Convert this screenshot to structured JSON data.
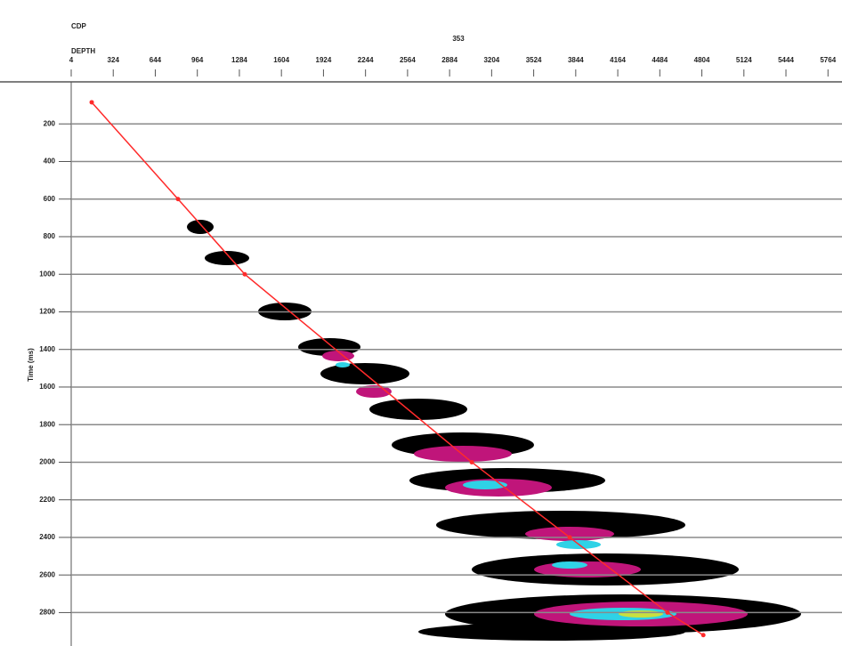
{
  "chart_data": {
    "type": "line",
    "label_top": "CDP",
    "cdp": "353",
    "xlabel": "DEPTH",
    "ylabel": "Time (ms)",
    "xlim": [
      4,
      5830
    ],
    "ylim": [
      0,
      2940
    ],
    "xticks": [
      4,
      324,
      644,
      964,
      1284,
      1604,
      1924,
      2244,
      2564,
      2884,
      3204,
      3524,
      3844,
      4164,
      4484,
      4804,
      5124,
      5444,
      5764
    ],
    "yticks": [
      200,
      400,
      600,
      800,
      1000,
      1200,
      1400,
      1600,
      1800,
      2000,
      2200,
      2400,
      2600,
      2800
    ],
    "grid": true,
    "series": [
      {
        "color": "#ff2a2a",
        "x": [
          160,
          817,
          1325,
          3053,
          3798,
          4543,
          4815
        ],
        "values": [
          85,
          600,
          1000,
          2000,
          2400,
          2800,
          2920
        ]
      }
    ]
  }
}
